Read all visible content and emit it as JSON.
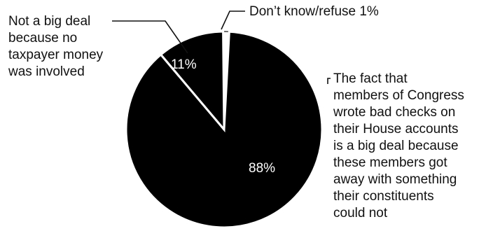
{
  "chart_data": {
    "type": "pie",
    "slices": [
      {
        "label_lines": [
          "The fact that",
          "members of Congress",
          "wrote bad checks on",
          "their House accounts",
          "is a big deal because",
          "these members got",
          "away with something",
          "their constituents",
          "could not"
        ],
        "value": 88,
        "value_label": "88%",
        "color": "#000000"
      },
      {
        "label_lines": [
          "Not a big deal",
          "because no",
          "taxpayer money",
          "was involved"
        ],
        "value": 11,
        "value_label": "11%",
        "color": "#000000"
      },
      {
        "label_lines": [
          "Don’t know/refuse 1%"
        ],
        "value": 1,
        "value_label": "",
        "color": "#ffffff"
      }
    ],
    "slice_separator_color": "#ffffff"
  }
}
